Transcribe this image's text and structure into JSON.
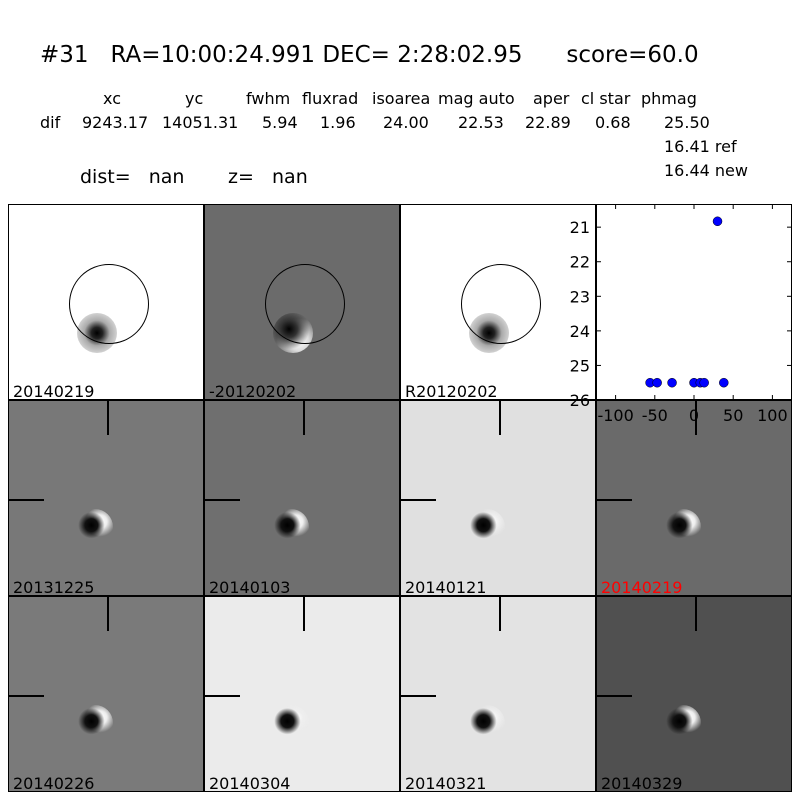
{
  "header": {
    "title": "#31   RA=10:00:24.991 DEC= 2:28:02.95      score=60.0",
    "columns": [
      "xc",
      "yc",
      "fwhm",
      "fluxrad",
      "isoarea",
      "mag auto",
      "aper",
      "cl star",
      "phmag"
    ],
    "row_label": "dif",
    "values": [
      "9243.17",
      "14051.31",
      "5.94",
      "1.96",
      "24.00",
      "22.53",
      "22.89",
      "0.68",
      "25.50"
    ],
    "ref": "16.41 ref",
    "new": "16.44 new",
    "dist": "dist=   nan",
    "z": "z=   nan"
  },
  "panels": [
    {
      "label": "20140219",
      "bg": "#ffffff",
      "circle": true,
      "label_color": "#000000"
    },
    {
      "label": "-20120202",
      "bg": "#6b6b6b",
      "circle": true,
      "label_color": "#000000"
    },
    {
      "label": "R20120202",
      "bg": "#ffffff",
      "circle": true,
      "label_color": "#000000"
    },
    {
      "label": "20131225",
      "bg": "#787878",
      "label_color": "#000000"
    },
    {
      "label": "20140103",
      "bg": "#6f6f6f",
      "label_color": "#000000"
    },
    {
      "label": "20140121",
      "bg": "#e0e0e0",
      "label_color": "#000000"
    },
    {
      "label": "20140219",
      "bg": "#6a6a6a",
      "label_color": "#ff0000"
    },
    {
      "label": "20140226",
      "bg": "#7a7a7a",
      "label_color": "#000000"
    },
    {
      "label": "20140304",
      "bg": "#ebebeb",
      "label_color": "#000000"
    },
    {
      "label": "20140321",
      "bg": "#e3e3e3",
      "label_color": "#000000"
    },
    {
      "label": "20140329",
      "bg": "#505050",
      "label_color": "#000000"
    }
  ],
  "chart_data": {
    "type": "scatter",
    "x": [
      -56,
      -47,
      -28,
      0,
      8,
      13,
      38,
      30
    ],
    "y": [
      25.5,
      25.5,
      25.5,
      25.5,
      25.5,
      25.5,
      25.5,
      20.83
    ],
    "xlim": [
      -125,
      125
    ],
    "ylim": [
      26,
      20.33
    ],
    "y_inverted": true,
    "xticks": [
      -100,
      -50,
      0,
      50,
      100
    ],
    "yticks": [
      21,
      22,
      23,
      24,
      25,
      26
    ],
    "marker_color": "#0000ff",
    "grid": false
  }
}
